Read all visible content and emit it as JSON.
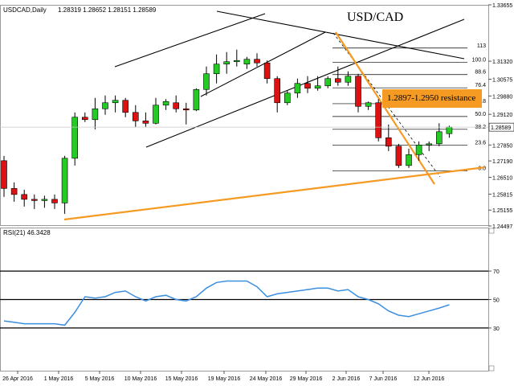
{
  "header": {
    "symbol_tf": "USDCAD,Daily",
    "ohlc": "1.28319 1.28652 1.28151 1.28589"
  },
  "chart_data": [
    {
      "type": "candlestick",
      "title": "USD/CAD",
      "ylim": [
        1.24497,
        1.33655
      ],
      "y_ticks": [
        "1.33655",
        "1.31320",
        "1.30575",
        "1.29880",
        "1.29120",
        "1.28589",
        "1.27850",
        "1.27190",
        "1.26510",
        "1.25815",
        "1.25155",
        "1.24497"
      ],
      "last_price": "1.28589",
      "x_labels": [
        "26 Apr 2016",
        "1 May 2016",
        "5 May 2016",
        "10 May 2016",
        "15 May 2016",
        "19 May 2016",
        "24 May 2016",
        "29 May 2016",
        "2 Jun 2016",
        "7 Jun 2016",
        "12 Jun 2016"
      ],
      "candles": [
        {
          "o": 1.272,
          "h": 1.274,
          "l": 1.257,
          "c": 1.2605
        },
        {
          "o": 1.2605,
          "h": 1.263,
          "l": 1.255,
          "c": 1.258
        },
        {
          "o": 1.258,
          "h": 1.26,
          "l": 1.253,
          "c": 1.256
        },
        {
          "o": 1.256,
          "h": 1.258,
          "l": 1.252,
          "c": 1.2555
        },
        {
          "o": 1.2555,
          "h": 1.2575,
          "l": 1.2525,
          "c": 1.256
        },
        {
          "o": 1.256,
          "h": 1.258,
          "l": 1.252,
          "c": 1.2545
        },
        {
          "o": 1.2545,
          "h": 1.274,
          "l": 1.25,
          "c": 1.273
        },
        {
          "o": 1.273,
          "h": 1.292,
          "l": 1.27,
          "c": 1.29
        },
        {
          "o": 1.29,
          "h": 1.292,
          "l": 1.288,
          "c": 1.289
        },
        {
          "o": 1.289,
          "h": 1.298,
          "l": 1.285,
          "c": 1.2935
        },
        {
          "o": 1.2935,
          "h": 1.299,
          "l": 1.291,
          "c": 1.296
        },
        {
          "o": 1.296,
          "h": 1.299,
          "l": 1.292,
          "c": 1.297
        },
        {
          "o": 1.297,
          "h": 1.298,
          "l": 1.29,
          "c": 1.292
        },
        {
          "o": 1.292,
          "h": 1.295,
          "l": 1.286,
          "c": 1.2885
        },
        {
          "o": 1.2885,
          "h": 1.292,
          "l": 1.286,
          "c": 1.2875
        },
        {
          "o": 1.2875,
          "h": 1.298,
          "l": 1.287,
          "c": 1.295
        },
        {
          "o": 1.295,
          "h": 1.2975,
          "l": 1.293,
          "c": 1.2965
        },
        {
          "o": 1.296,
          "h": 1.299,
          "l": 1.292,
          "c": 1.2935
        },
        {
          "o": 1.2935,
          "h": 1.296,
          "l": 1.287,
          "c": 1.293
        },
        {
          "o": 1.293,
          "h": 1.302,
          "l": 1.2925,
          "c": 1.3015
        },
        {
          "o": 1.3015,
          "h": 1.311,
          "l": 1.299,
          "c": 1.308
        },
        {
          "o": 1.308,
          "h": 1.316,
          "l": 1.304,
          "c": 1.312
        },
        {
          "o": 1.312,
          "h": 1.317,
          "l": 1.308,
          "c": 1.313
        },
        {
          "o": 1.313,
          "h": 1.318,
          "l": 1.311,
          "c": 1.3135
        },
        {
          "o": 1.312,
          "h": 1.315,
          "l": 1.31,
          "c": 1.314
        },
        {
          "o": 1.314,
          "h": 1.3165,
          "l": 1.311,
          "c": 1.3125
        },
        {
          "o": 1.3125,
          "h": 1.3135,
          "l": 1.304,
          "c": 1.306
        },
        {
          "o": 1.306,
          "h": 1.307,
          "l": 1.292,
          "c": 1.296
        },
        {
          "o": 1.296,
          "h": 1.301,
          "l": 1.295,
          "c": 1.3
        },
        {
          "o": 1.3,
          "h": 1.306,
          "l": 1.298,
          "c": 1.304
        },
        {
          "o": 1.304,
          "h": 1.307,
          "l": 1.3,
          "c": 1.302
        },
        {
          "o": 1.302,
          "h": 1.307,
          "l": 1.301,
          "c": 1.303
        },
        {
          "o": 1.303,
          "h": 1.307,
          "l": 1.302,
          "c": 1.306
        },
        {
          "o": 1.306,
          "h": 1.311,
          "l": 1.303,
          "c": 1.3045
        },
        {
          "o": 1.3045,
          "h": 1.309,
          "l": 1.303,
          "c": 1.307
        },
        {
          "o": 1.307,
          "h": 1.308,
          "l": 1.292,
          "c": 1.2945
        },
        {
          "o": 1.2945,
          "h": 1.2965,
          "l": 1.293,
          "c": 1.296
        },
        {
          "o": 1.296,
          "h": 1.2975,
          "l": 1.28,
          "c": 1.2815
        },
        {
          "o": 1.2815,
          "h": 1.287,
          "l": 1.276,
          "c": 1.278
        },
        {
          "o": 1.278,
          "h": 1.279,
          "l": 1.269,
          "c": 1.27
        },
        {
          "o": 1.27,
          "h": 1.277,
          "l": 1.269,
          "c": 1.2745
        },
        {
          "o": 1.2745,
          "h": 1.28,
          "l": 1.272,
          "c": 1.2785
        },
        {
          "o": 1.2785,
          "h": 1.28,
          "l": 1.276,
          "c": 1.279
        },
        {
          "o": 1.279,
          "h": 1.2875,
          "l": 1.278,
          "c": 1.284
        },
        {
          "o": 1.2832,
          "h": 1.2865,
          "l": 1.2815,
          "c": 1.2859
        }
      ],
      "candle_colors": {
        "up": "#22cc22",
        "down": "#dd1111"
      },
      "fib_levels": [
        "113",
        "100.0",
        "88.6",
        "76.4",
        "61.8",
        "50.0",
        "38.2",
        "23.6",
        "0.0"
      ],
      "annotation": "1.2897-1.2950 resistance",
      "annotation_color": "#f59a23",
      "trendline_color": "#f59a23"
    },
    {
      "type": "line",
      "title": "RSI(21) 46.3428",
      "ylim": [
        0,
        100
      ],
      "levels": [
        70,
        50,
        30
      ],
      "series": [
        {
          "name": "RSI(21)",
          "color": "#3b8fe0",
          "values": [
            35,
            34,
            33,
            33,
            33,
            33,
            32,
            41,
            52,
            51,
            52,
            55,
            56,
            52,
            49,
            52,
            53,
            50,
            49,
            52,
            58,
            62,
            63,
            63,
            63,
            59,
            52,
            54,
            55,
            56,
            57,
            58,
            58,
            56,
            57,
            52,
            50,
            47,
            42,
            39,
            38,
            40,
            42,
            44,
            46.3
          ]
        }
      ]
    }
  ]
}
